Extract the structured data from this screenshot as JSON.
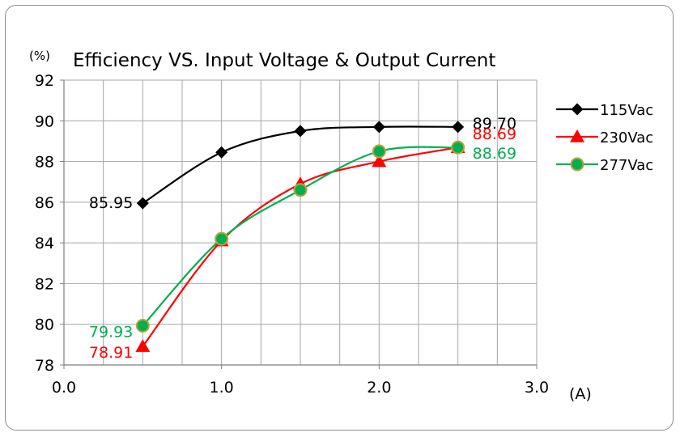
{
  "chart_data": {
    "type": "line",
    "title": "Efficiency VS. Input Voltage & Output Current",
    "ylabel": "(%)",
    "xlabel": "(A)",
    "xlim": [
      0,
      3
    ],
    "ylim": [
      78,
      92
    ],
    "x_ticks": [
      "0.0",
      "1.0",
      "2.0",
      "3.0"
    ],
    "y_ticks": [
      "78",
      "80",
      "82",
      "84",
      "86",
      "88",
      "90",
      "92"
    ],
    "x_minor_step": 0.25,
    "grid": true,
    "legend": "right",
    "x": [
      0.5,
      1.0,
      1.5,
      2.0,
      2.5
    ],
    "series": [
      {
        "name": "115Vac",
        "values": [
          85.95,
          88.45,
          89.5,
          89.7,
          89.7
        ],
        "color": "#000000",
        "marker": "diamond"
      },
      {
        "name": "230Vac",
        "values": [
          78.91,
          84.1,
          86.9,
          88.0,
          88.69
        ],
        "color": "#ff0000",
        "marker": "triangle"
      },
      {
        "name": "277Vac",
        "values": [
          79.93,
          84.2,
          86.6,
          88.5,
          88.69
        ],
        "color": "#00b050",
        "marker": "circle"
      }
    ],
    "annotations": [
      {
        "text": "85.95",
        "series": "115Vac",
        "x": 0.5,
        "y": 85.95,
        "color": "#000000",
        "anchor": "end"
      },
      {
        "text": "89.70",
        "series": "115Vac",
        "x": 2.5,
        "y": 89.7,
        "color": "#000000",
        "anchor": "start"
      },
      {
        "text": "79.93",
        "series": "277Vac",
        "x": 0.5,
        "y": 79.93,
        "color": "#00b050",
        "anchor": "end"
      },
      {
        "text": "78.91",
        "series": "230Vac",
        "x": 0.5,
        "y": 78.91,
        "color": "#ff0000",
        "anchor": "end"
      },
      {
        "text": "88.69",
        "series": "230Vac",
        "x": 2.5,
        "y": 88.69,
        "color": "#ff0000",
        "anchor": "start"
      },
      {
        "text": "88.69",
        "series": "277Vac",
        "x": 2.5,
        "y": 88.69,
        "color": "#00b050",
        "anchor": "start"
      }
    ]
  }
}
